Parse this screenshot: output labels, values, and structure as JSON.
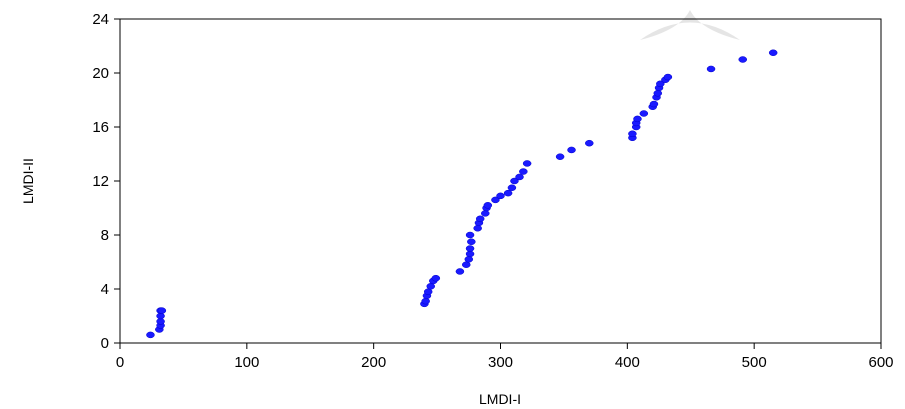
{
  "chart_data": {
    "type": "scatter",
    "title": "",
    "xlabel": "LMDI-I",
    "ylabel": "LMDI-II",
    "xlim": [
      0,
      600
    ],
    "ylim": [
      0,
      24
    ],
    "xticks": [
      0,
      100,
      200,
      300,
      400,
      500,
      600
    ],
    "yticks": [
      0,
      4,
      8,
      12,
      16,
      20,
      24
    ],
    "grid": false,
    "marker_color": "#1a1aff",
    "series": [
      {
        "points": [
          [
            24,
            0.6
          ],
          [
            31,
            1.0
          ],
          [
            32,
            1.3
          ],
          [
            32,
            1.6
          ],
          [
            32,
            2.0
          ],
          [
            32,
            2.4
          ],
          [
            33,
            2.4
          ],
          [
            240,
            2.9
          ],
          [
            241,
            3.1
          ],
          [
            242,
            3.5
          ],
          [
            243,
            3.8
          ],
          [
            245,
            4.2
          ],
          [
            247,
            4.6
          ],
          [
            249,
            4.8
          ],
          [
            268,
            5.3
          ],
          [
            273,
            5.8
          ],
          [
            275,
            6.2
          ],
          [
            276,
            6.6
          ],
          [
            276,
            7.0
          ],
          [
            277,
            7.5
          ],
          [
            276,
            8.0
          ],
          [
            282,
            8.5
          ],
          [
            283,
            8.9
          ],
          [
            284,
            9.2
          ],
          [
            288,
            9.6
          ],
          [
            289,
            10.0
          ],
          [
            290,
            10.2
          ],
          [
            296,
            10.6
          ],
          [
            300,
            10.9
          ],
          [
            306,
            11.1
          ],
          [
            309,
            11.5
          ],
          [
            311,
            12.0
          ],
          [
            315,
            12.3
          ],
          [
            318,
            12.7
          ],
          [
            321,
            13.3
          ],
          [
            347,
            13.8
          ],
          [
            356,
            14.3
          ],
          [
            370,
            14.8
          ],
          [
            404,
            15.2
          ],
          [
            404,
            15.5
          ],
          [
            407,
            16.0
          ],
          [
            407,
            16.3
          ],
          [
            408,
            16.6
          ],
          [
            413,
            17.0
          ],
          [
            420,
            17.5
          ],
          [
            421,
            17.7
          ],
          [
            423,
            18.2
          ],
          [
            424,
            18.5
          ],
          [
            425,
            18.9
          ],
          [
            426,
            19.2
          ],
          [
            430,
            19.5
          ],
          [
            432,
            19.7
          ],
          [
            466,
            20.3
          ],
          [
            491,
            21.0
          ],
          [
            515,
            21.5
          ]
        ]
      }
    ]
  }
}
